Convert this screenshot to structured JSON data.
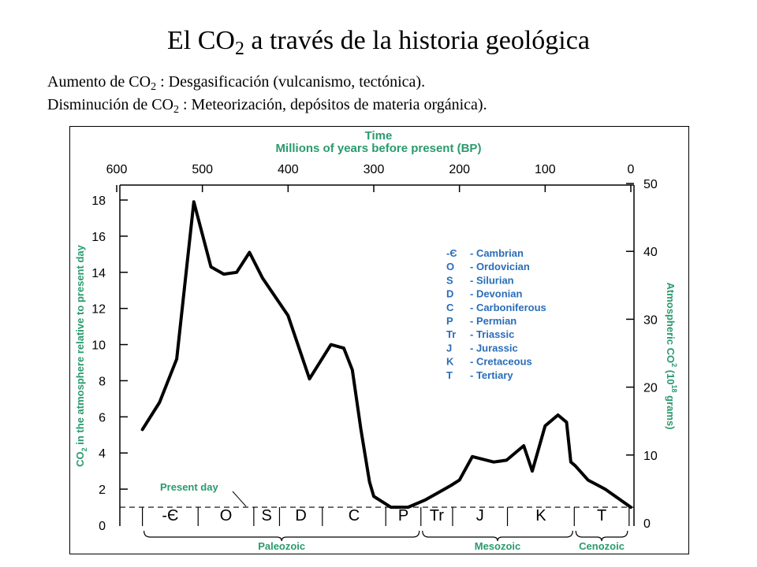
{
  "slide": {
    "title_main": "El CO",
    "title_sub": "2",
    "title_rest": " a través de la historia geológica",
    "note1_a": "Aumento de CO",
    "note1_sub": "2",
    "note1_b": " : Desgasificación (vulcanismo, tectónica).",
    "note2_a": "Disminución de CO",
    "note2_sub": "2",
    "note2_b": " : Meteorización, depósitos de materia orgánica)."
  },
  "chart_data": {
    "type": "line",
    "top_axis_title_1": "Time",
    "top_axis_title_2": "Millions of years before present (BP)",
    "x_ticks": [
      600,
      500,
      400,
      300,
      200,
      100,
      0
    ],
    "xlim": [
      600,
      0
    ],
    "ylabel_left_a": "CO",
    "ylabel_left_sub": "2",
    "ylabel_left_b": " in the atmosphere relative to present day",
    "y_ticks_left": [
      0,
      2,
      4,
      6,
      8,
      10,
      12,
      14,
      16,
      18
    ],
    "ylim_left": [
      0,
      19
    ],
    "ylabel_right_a": "Atmospheric CO",
    "ylabel_right_sup": "2",
    "ylabel_right_b": " (10",
    "ylabel_right_sup2": "18",
    "ylabel_right_c": " grams)",
    "y_ticks_right": [
      0,
      10,
      20,
      30,
      40,
      50
    ],
    "present_day_label": "Present day",
    "present_day_value": 1,
    "series": [
      {
        "x": [
          570,
          550,
          530,
          510,
          490,
          475,
          460,
          445,
          430,
          400,
          375,
          350,
          335,
          325,
          315,
          305,
          300,
          280,
          260,
          240,
          225,
          210,
          200,
          185,
          160,
          145,
          125,
          115,
          100,
          85,
          75,
          70,
          65,
          50,
          30,
          0
        ],
        "values": [
          5.3,
          6.8,
          9.2,
          17.9,
          14.3,
          13.9,
          14,
          15.1,
          13.7,
          11.6,
          8.1,
          10,
          9.8,
          8.6,
          5.3,
          2.4,
          1.6,
          1.0,
          1.0,
          1.4,
          1.8,
          2.2,
          2.5,
          3.8,
          3.5,
          3.6,
          4.4,
          3.0,
          5.5,
          6.1,
          5.7,
          3.5,
          3.3,
          2.5,
          2.0,
          1.0
        ]
      }
    ],
    "periods": [
      "-Є",
      "O",
      "S",
      "D",
      "C",
      "P",
      "Tr",
      "J",
      "K",
      "T"
    ],
    "eras": [
      "Paleozoic",
      "Mesozoic",
      "Cenozoic"
    ],
    "legend": [
      {
        "code": "-Є",
        "name": "- Cambrian"
      },
      {
        "code": "O",
        "name": "- Ordovician"
      },
      {
        "code": "S",
        "name": "- Silurian"
      },
      {
        "code": "D",
        "name": "- Devonian"
      },
      {
        "code": "C",
        "name": "- Carboniferous"
      },
      {
        "code": "P",
        "name": "- Permian"
      },
      {
        "code": "Tr",
        "name": "- Triassic"
      },
      {
        "code": "J",
        "name": "- Jurassic"
      },
      {
        "code": "K",
        "name": "- Cretaceous"
      },
      {
        "code": "T",
        "name": "- Tertiary"
      }
    ],
    "colors": {
      "axis_title": "#2a9a6e",
      "legend": "#2a6db8",
      "line": "#000000"
    }
  }
}
